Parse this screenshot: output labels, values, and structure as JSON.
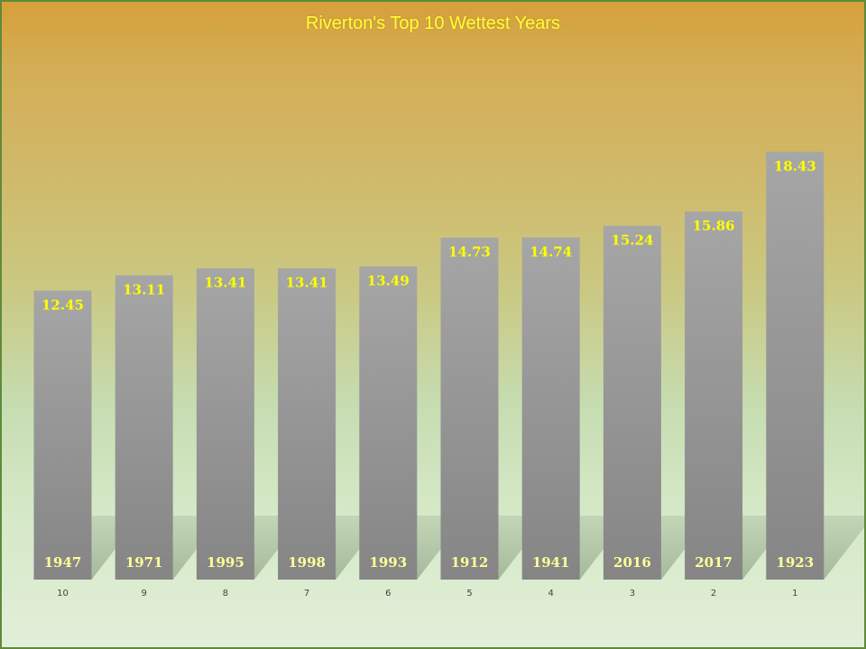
{
  "chart_data": {
    "type": "bar",
    "title": "Riverton's Top 10 Wettest Years",
    "categories": [
      "10",
      "9",
      "8",
      "7",
      "6",
      "5",
      "4",
      "3",
      "2",
      "1"
    ],
    "values": [
      12.45,
      13.11,
      13.41,
      13.41,
      13.49,
      14.73,
      14.74,
      15.24,
      15.86,
      18.43
    ],
    "value_labels": [
      "12.45",
      "13.11",
      "13.41",
      "13.41",
      "13.49",
      "14.73",
      "14.74",
      "15.24",
      "15.86",
      "18.43"
    ],
    "bar_labels": [
      "1947",
      "1971",
      "1995",
      "1998",
      "1993",
      "1912",
      "1941",
      "2016",
      "2017",
      "1923"
    ],
    "ylim": [
      0,
      24
    ],
    "grid": false,
    "legend": "none",
    "colors": {
      "title": "#ffff33",
      "value_labels": "#ffff00",
      "bar_labels": "#ffff99",
      "bar_top": "#a6a6a6",
      "bar_bottom": "#858585",
      "shadow": "#9fb395"
    }
  }
}
